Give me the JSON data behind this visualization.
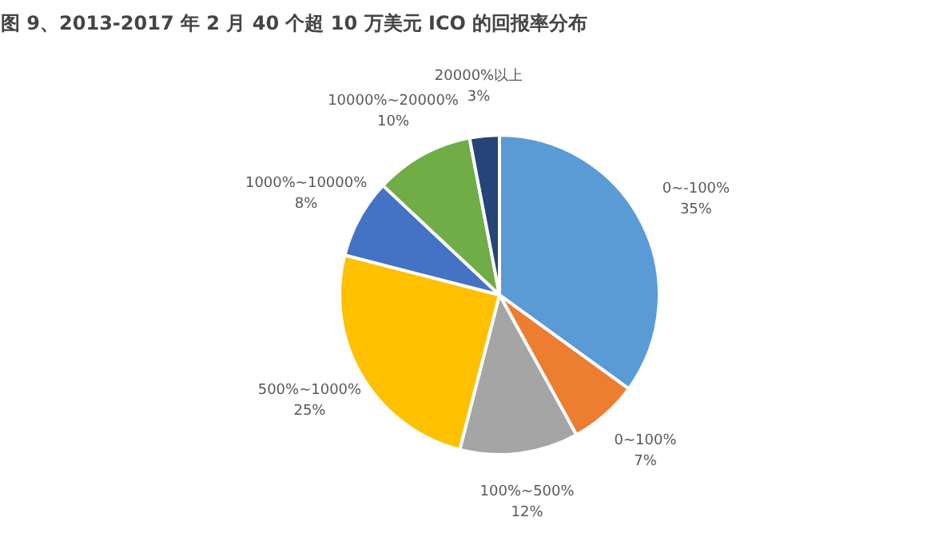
{
  "chart_data": {
    "type": "pie",
    "title": "图 9、2013-2017 年 2 月 40 个超 10 万美元 ICO 的回报率分布",
    "categories": [
      "0~-100%",
      "0~100%",
      "100%~500%",
      "500%~1000%",
      "1000%~10000%",
      "10000%~20000%",
      "20000%以上"
    ],
    "values": [
      35,
      7,
      12,
      25,
      8,
      10,
      3
    ],
    "value_labels": [
      "35%",
      "7%",
      "12%",
      "25%",
      "8%",
      "10%",
      "3%"
    ],
    "colors": [
      "#5b9bd5",
      "#ed7d31",
      "#a5a5a5",
      "#ffc000",
      "#4472c4",
      "#70ad47",
      "#264478"
    ]
  }
}
